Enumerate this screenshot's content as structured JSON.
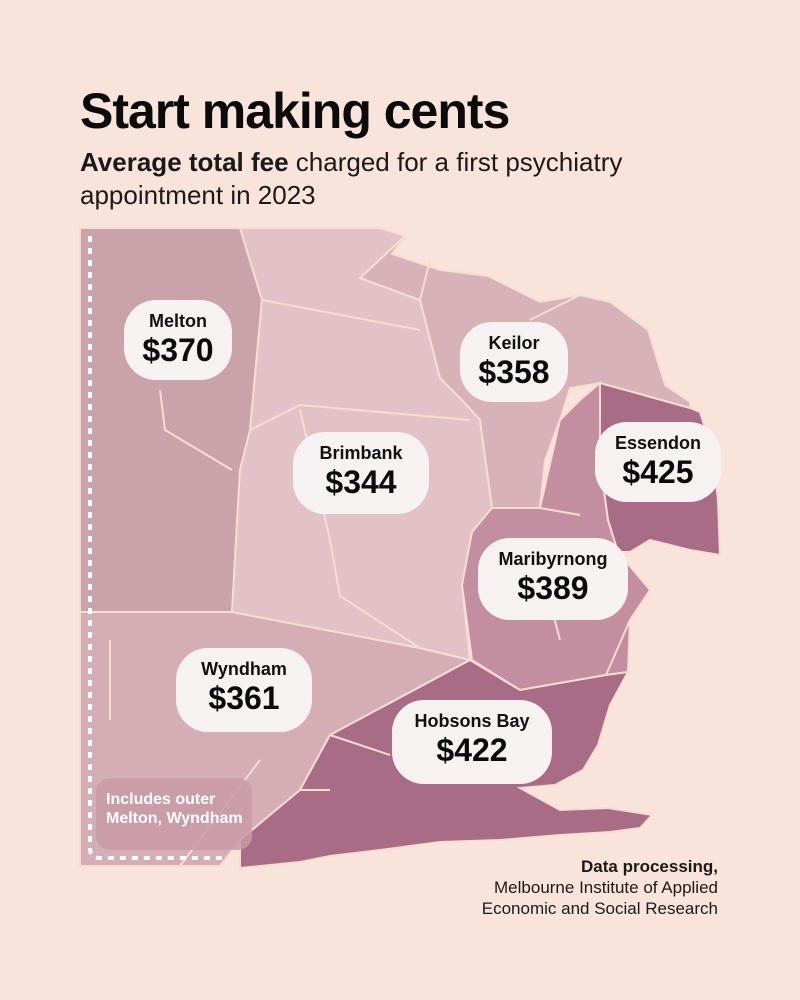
{
  "header": {
    "title": "Start making cents",
    "subtitle_bold": "Average total fee",
    "subtitle_rest": " charged for a first psychiatry appointment in 2023"
  },
  "regions": [
    {
      "name": "Melton",
      "fee": "$370",
      "color": "#c9a2aa"
    },
    {
      "name": "Keilor",
      "fee": "$358",
      "color": "#d7b2b9"
    },
    {
      "name": "Brimbank",
      "fee": "$344",
      "color": "#e2c2c6"
    },
    {
      "name": "Essendon",
      "fee": "$425",
      "color": "#a86c86"
    },
    {
      "name": "Maribyrnong",
      "fee": "$389",
      "color": "#c38e9f"
    },
    {
      "name": "Wyndham",
      "fee": "$361",
      "color": "#d5aeb5"
    },
    {
      "name": "Hobsons Bay",
      "fee": "$422",
      "color": "#a96c86"
    }
  ],
  "note": "Includes outer Melton, Wyndham",
  "credit": {
    "line1": "Data processing,",
    "line2": "Melbourne Institute of Applied",
    "line3": "Economic and Social Research"
  },
  "colors": {
    "background": "#f9e4db",
    "boundary": "#f6dcd2",
    "badge": "#f7f2f2"
  }
}
